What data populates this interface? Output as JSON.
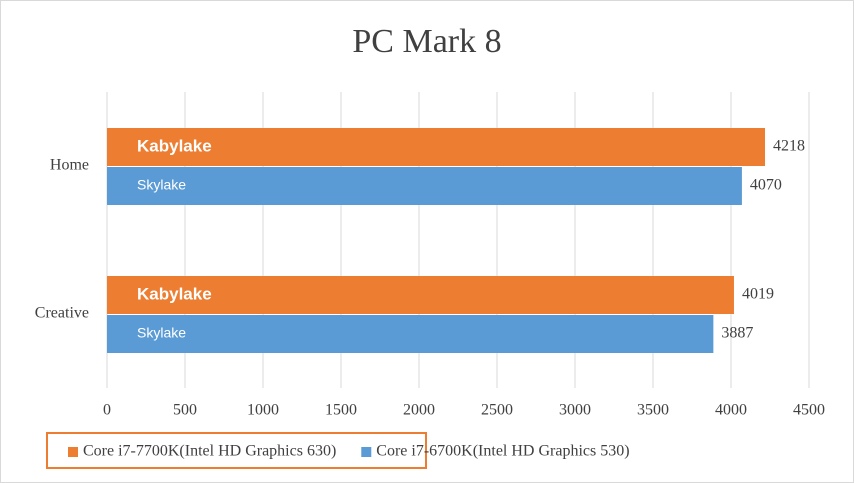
{
  "chart_data": {
    "type": "bar",
    "orientation": "horizontal",
    "title": "PC Mark 8",
    "categories": [
      "Home",
      "Creative"
    ],
    "series": [
      {
        "name": "Core i7-7700K(Intel HD Graphics 630)",
        "label": "Kabylake",
        "color": "#ed7d31",
        "values": [
          4218,
          4019
        ]
      },
      {
        "name": "Core i7-6700K(Intel HD Graphics 530)",
        "label": "Skylake",
        "color": "#5b9bd5",
        "values": [
          4070,
          3887
        ]
      }
    ],
    "xlim": [
      0,
      4500
    ],
    "xticks": [
      0,
      500,
      1000,
      1500,
      2000,
      2500,
      3000,
      3500,
      4000,
      4500
    ],
    "grid": true,
    "legend": "bottom"
  }
}
